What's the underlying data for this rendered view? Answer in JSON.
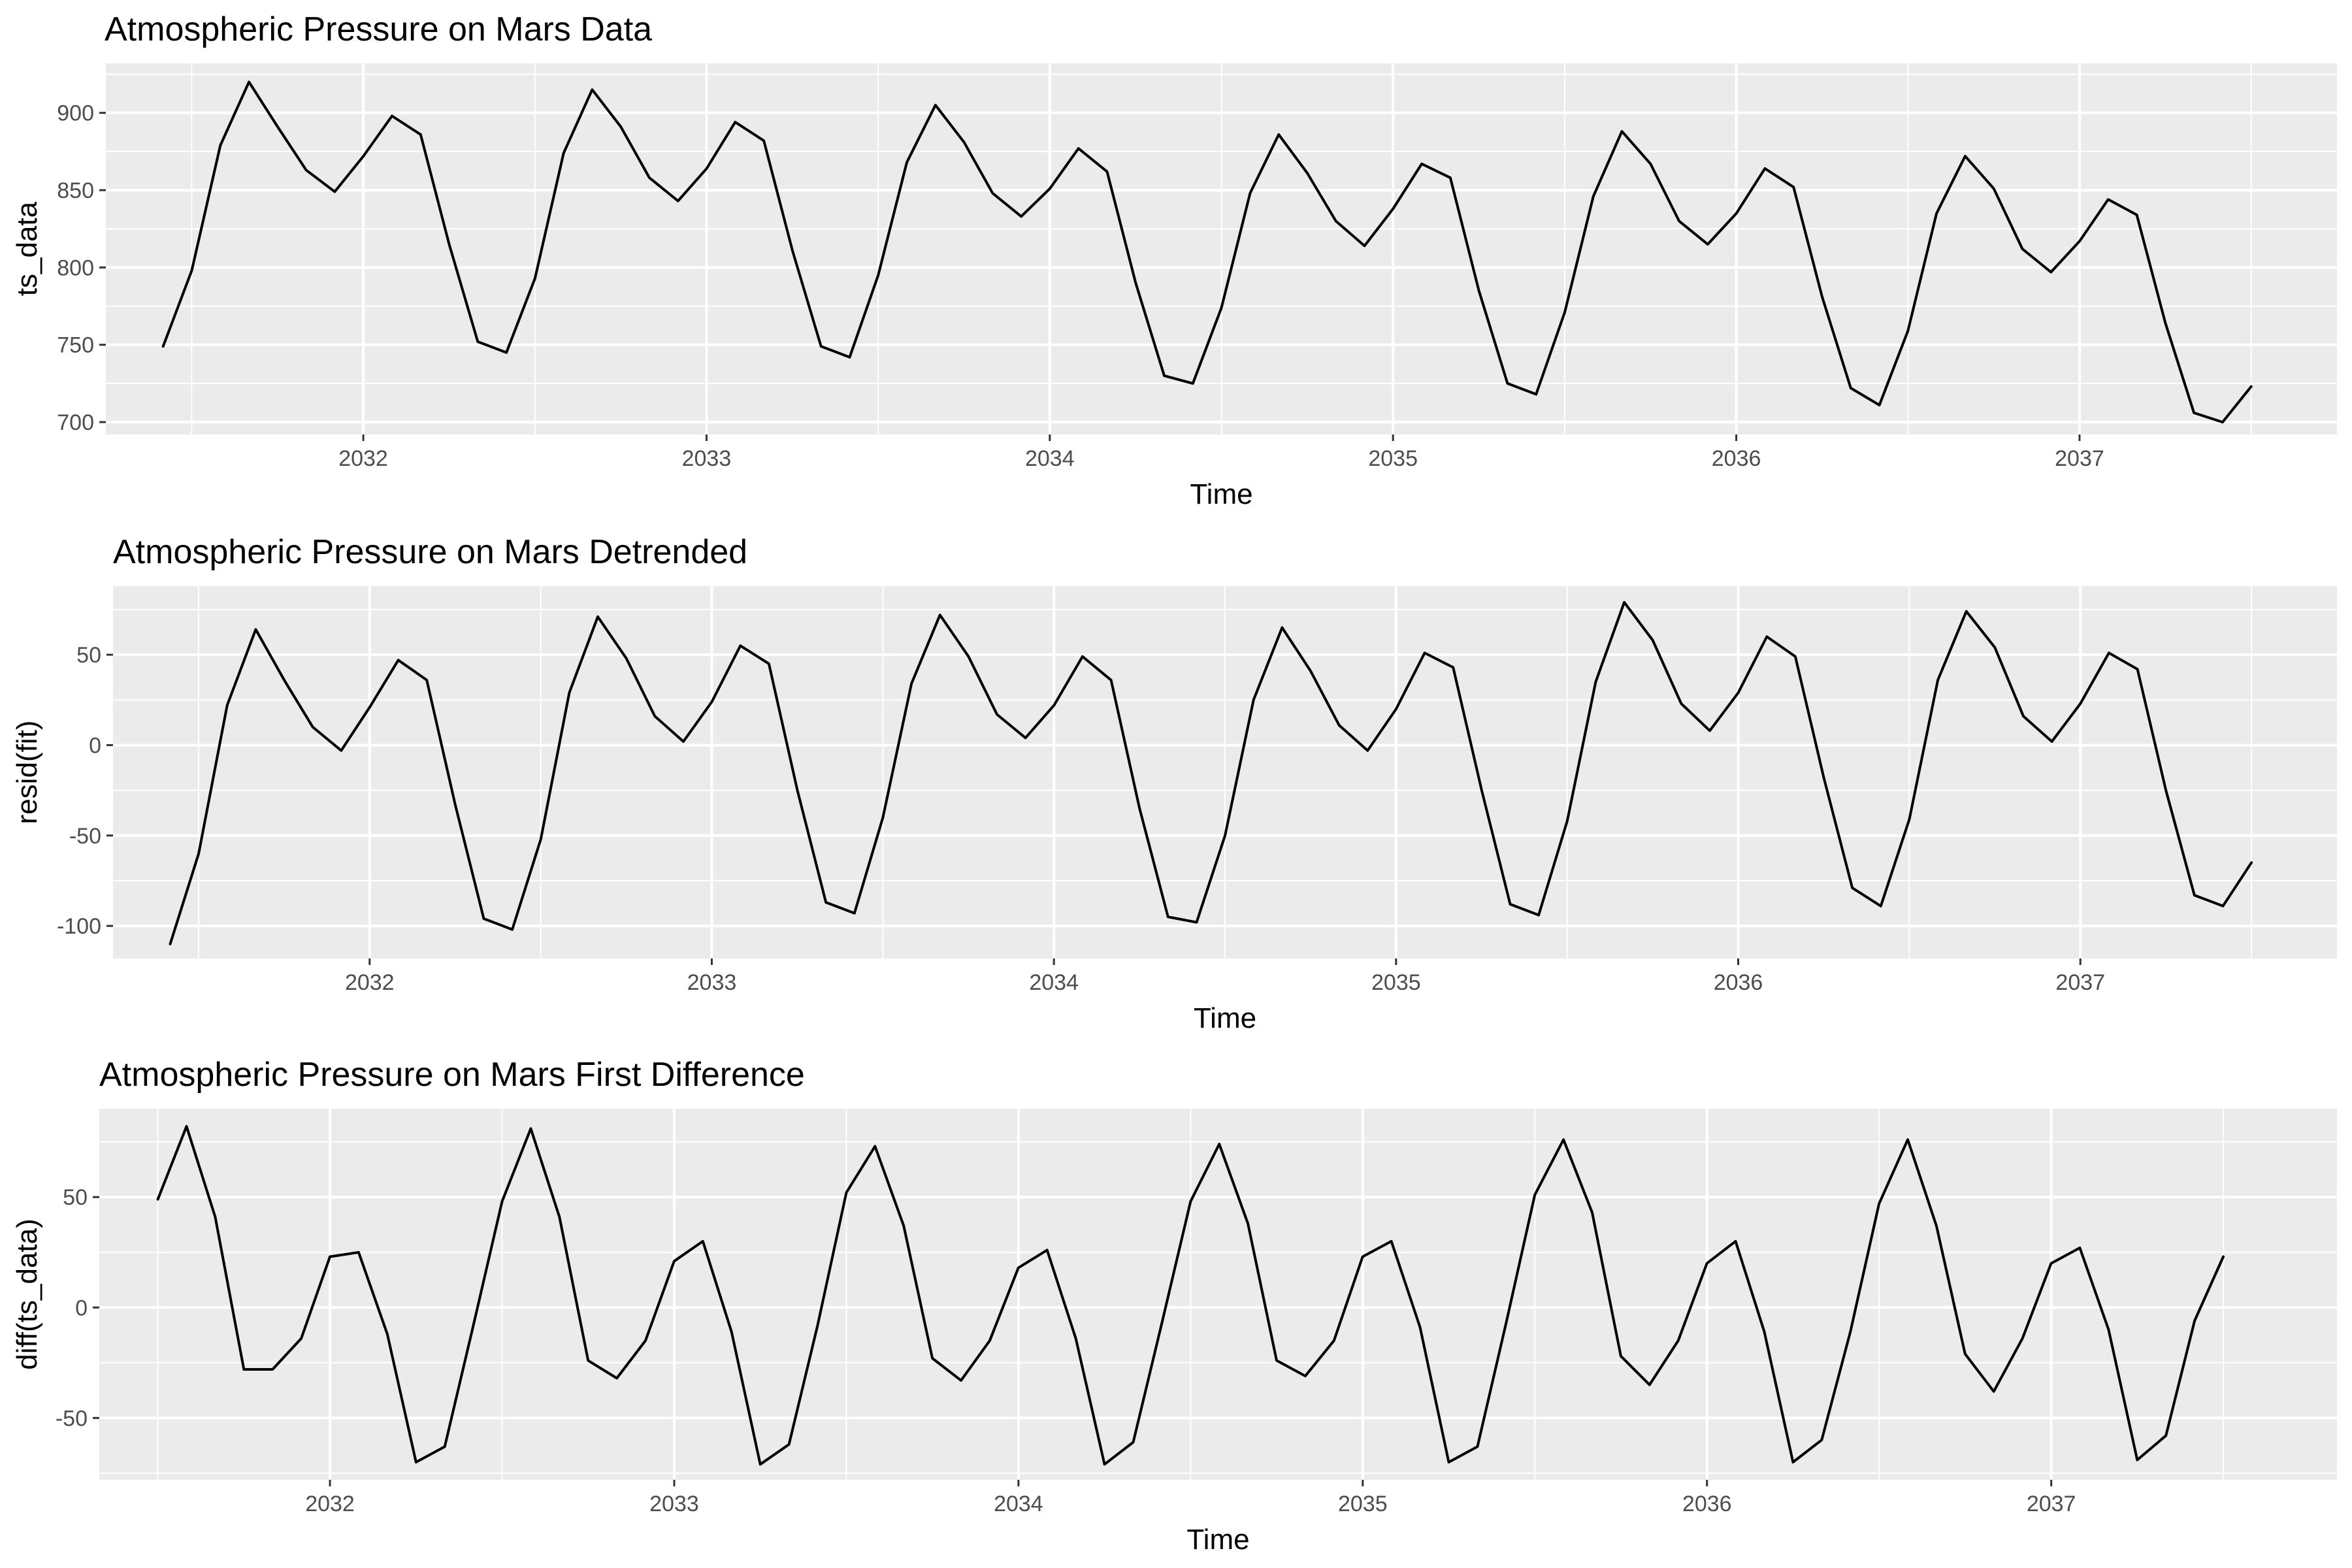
{
  "chart_data": [
    {
      "type": "line",
      "title": "Atmospheric Pressure on Mars Data",
      "xlabel": "Time",
      "ylabel": "ts_data",
      "xlim": [
        2031.25,
        2037.75
      ],
      "ylim": [
        692,
        932
      ],
      "xticks": [
        2032,
        2033,
        2034,
        2035,
        2036,
        2037
      ],
      "yticks": [
        700,
        750,
        800,
        850,
        900
      ],
      "grid": true,
      "x_start": 2031.417,
      "x_step": 0.08333,
      "series": [
        {
          "color": "#000000",
          "values": [
            749,
            798,
            879,
            920,
            891,
            863,
            849,
            872,
            898,
            886,
            815,
            752,
            745,
            793,
            874,
            915,
            891,
            858,
            843,
            864,
            894,
            882,
            811,
            749,
            742,
            795,
            868,
            905,
            881,
            848,
            833,
            851,
            877,
            862,
            790,
            730,
            725,
            774,
            848,
            886,
            861,
            830,
            814,
            838,
            867,
            858,
            785,
            725,
            718,
            771,
            846,
            888,
            867,
            830,
            815,
            835,
            864,
            852,
            781,
            722,
            711,
            759,
            835,
            872,
            851,
            812,
            797,
            817,
            844,
            834,
            764,
            706,
            700,
            723
          ]
        }
      ]
    },
    {
      "type": "line",
      "title": "Atmospheric Pressure on Mars Detrended",
      "xlabel": "Time",
      "ylabel": "resid(fit)",
      "xlim": [
        2031.25,
        2037.75
      ],
      "ylim": [
        -118,
        88
      ],
      "xticks": [
        2032,
        2033,
        2034,
        2035,
        2036,
        2037
      ],
      "yticks": [
        -100,
        -50,
        0,
        50
      ],
      "grid": true,
      "x_start": 2031.417,
      "x_step": 0.08333,
      "series": [
        {
          "color": "#000000",
          "values": [
            -110,
            -60,
            22,
            64,
            36,
            10,
            -3,
            21,
            47,
            36,
            -33,
            -96,
            -102,
            -52,
            29,
            71,
            48,
            16,
            2,
            24,
            55,
            45,
            -25,
            -87,
            -93,
            -40,
            34,
            72,
            49,
            17,
            4,
            22,
            49,
            36,
            -35,
            -95,
            -98,
            -50,
            25,
            65,
            41,
            11,
            -3,
            20,
            51,
            43,
            -25,
            -88,
            -94,
            -42,
            35,
            79,
            58,
            23,
            8,
            29,
            60,
            49,
            -18,
            -79,
            -89,
            -41,
            36,
            74,
            54,
            16,
            2,
            23,
            51,
            42,
            -25,
            -83,
            -89,
            -65
          ]
        }
      ]
    },
    {
      "type": "line",
      "title": "Atmospheric Pressure on Mars First Difference",
      "xlabel": "Time",
      "ylabel": "diff(ts_data)",
      "xlim": [
        2031.33,
        2037.83
      ],
      "ylim": [
        -78,
        90
      ],
      "xticks": [
        2032,
        2033,
        2034,
        2035,
        2036,
        2037
      ],
      "yticks": [
        -50,
        0,
        50
      ],
      "grid": true,
      "x_start": 2031.5,
      "x_step": 0.08333,
      "series": [
        {
          "color": "#000000",
          "values": [
            49,
            82,
            41,
            -28,
            -28,
            -14,
            23,
            25,
            -12,
            -70,
            -63,
            -8,
            48,
            81,
            41,
            -24,
            -32,
            -15,
            21,
            30,
            -11,
            -71,
            -62,
            -8,
            52,
            73,
            37,
            -23,
            -33,
            -15,
            18,
            26,
            -14,
            -71,
            -61,
            -7,
            48,
            74,
            38,
            -24,
            -31,
            -15,
            23,
            30,
            -9,
            -70,
            -63,
            -7,
            51,
            76,
            43,
            -22,
            -35,
            -15,
            20,
            30,
            -11,
            -70,
            -60,
            -11,
            47,
            76,
            37,
            -21,
            -38,
            -14,
            20,
            27,
            -10,
            -69,
            -58,
            -6,
            23
          ]
        }
      ]
    }
  ]
}
